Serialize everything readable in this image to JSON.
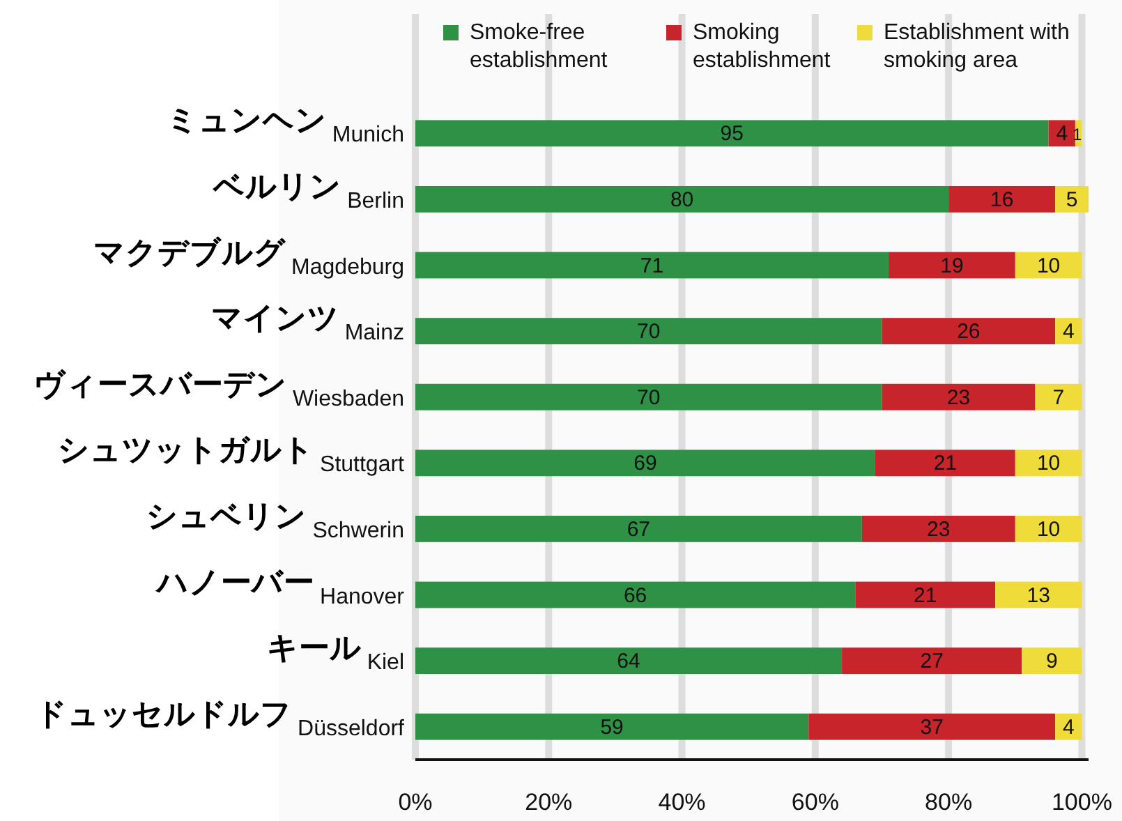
{
  "chart_data": {
    "type": "bar",
    "orientation": "horizontal",
    "stacked": true,
    "categories": [
      "ミュンヘン Munich",
      "ベルリン Berlin",
      "マクデブルグ Magdeburg",
      "マインツ Mainz",
      "ヴィースバーデン Wiesbaden",
      "シュツットガルト Stuttgart",
      "シュベリン Schwerin",
      "ハノーバー Hanover",
      "キール Kiel",
      "ドュッセルドルフ Düsseldorf"
    ],
    "series": [
      {
        "name": "Smoke-free establishment",
        "color": "#2f9146",
        "values": [
          95,
          80,
          71,
          70,
          70,
          69,
          67,
          66,
          64,
          59
        ]
      },
      {
        "name": "Smoking establishment",
        "color": "#c8242b",
        "values": [
          4,
          16,
          19,
          26,
          23,
          21,
          23,
          21,
          27,
          37
        ]
      },
      {
        "name": "Establishment with smoking area",
        "color": "#efdc3a",
        "values": [
          1,
          5,
          10,
          4,
          7,
          10,
          10,
          13,
          9,
          4
        ]
      }
    ],
    "xlim": [
      0,
      101
    ],
    "xticks": [
      {
        "value": 0,
        "label": "0%"
      },
      {
        "value": 20,
        "label": "20%"
      },
      {
        "value": 40,
        "label": "40%"
      },
      {
        "value": 60,
        "label": "60%"
      },
      {
        "value": 80,
        "label": "80%"
      },
      {
        "value": 100,
        "label": "100%"
      }
    ],
    "grid": "x",
    "legend": "top",
    "data_labels": true
  }
}
